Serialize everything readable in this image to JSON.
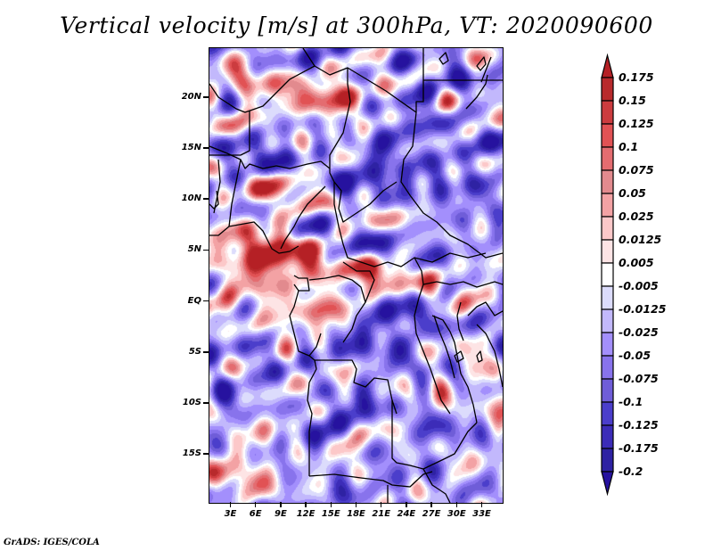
{
  "title": "Vertical velocity [m/s] at 300hPa, VT: 2020090600",
  "footer": "GrADS: IGES/COLA",
  "map": {
    "variable": "Vertical velocity",
    "units": "m/s",
    "level": "300hPa",
    "valid_time": "2020090600",
    "lon_range": [
      0.5,
      35.5
    ],
    "lat_range": [
      -19.8,
      24.8
    ],
    "y_ticks": [
      {
        "label": "20N",
        "lat": 20
      },
      {
        "label": "15N",
        "lat": 15
      },
      {
        "label": "10N",
        "lat": 10
      },
      {
        "label": "5N",
        "lat": 5
      },
      {
        "label": "EQ",
        "lat": 0
      },
      {
        "label": "5S",
        "lat": -5
      },
      {
        "label": "10S",
        "lat": -10
      },
      {
        "label": "15S",
        "lat": -15
      }
    ],
    "x_ticks": [
      {
        "label": "3E",
        "lon": 3
      },
      {
        "label": "6E",
        "lon": 6
      },
      {
        "label": "9E",
        "lon": 9
      },
      {
        "label": "12E",
        "lon": 12
      },
      {
        "label": "15E",
        "lon": 15
      },
      {
        "label": "18E",
        "lon": 18
      },
      {
        "label": "21E",
        "lon": 21
      },
      {
        "label": "24E",
        "lon": 24
      },
      {
        "label": "27E",
        "lon": 27
      },
      {
        "label": "30E",
        "lon": 30
      },
      {
        "label": "33E",
        "lon": 33
      }
    ]
  },
  "colorbar": {
    "levels": [
      "0.175",
      "0.15",
      "0.125",
      "0.1",
      "0.075",
      "0.05",
      "0.025",
      "0.0125",
      "0.005",
      "-0.005",
      "-0.0125",
      "-0.025",
      "-0.05",
      "-0.075",
      "-0.1",
      "-0.125",
      "-0.175",
      "-0.2"
    ],
    "colors_top_to_bottom": [
      "#b52025",
      "#b82a2c",
      "#cc3c3f",
      "#e15254",
      "#e46c70",
      "#e28a8e",
      "#f3a2a4",
      "#fcc8c9",
      "#fde4e5",
      "#ffffff",
      "#dcdcfc",
      "#c2b8fc",
      "#a38ffc",
      "#8873ec",
      "#6f5dd8",
      "#4b3ecb",
      "#3c2cb8",
      "#2e22a3",
      "#26129f"
    ],
    "upper_extend_color": "#b52025",
    "lower_extend_color": "#26129f"
  }
}
